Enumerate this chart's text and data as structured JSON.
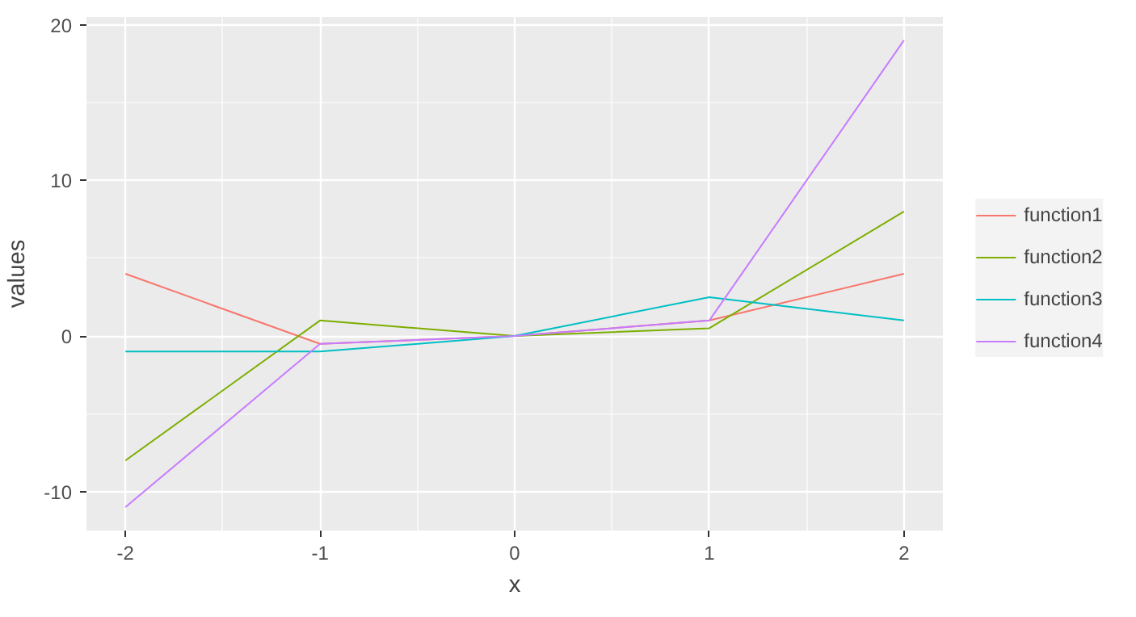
{
  "chart_data": {
    "type": "line",
    "xlabel": "x",
    "ylabel": "values",
    "x": [
      -2,
      -1,
      0,
      1,
      2
    ],
    "series": [
      {
        "name": "function1",
        "color": "#f8766d",
        "values": [
          4,
          -0.5,
          0,
          1,
          4
        ]
      },
      {
        "name": "function2",
        "color": "#7cae00",
        "values": [
          -8,
          1,
          0,
          0.5,
          8
        ]
      },
      {
        "name": "function3",
        "color": "#00bfc4",
        "values": [
          -1,
          -1,
          0,
          2.5,
          1
        ]
      },
      {
        "name": "function4",
        "color": "#c77cff",
        "values": [
          -11,
          -0.5,
          0,
          1,
          19
        ]
      }
    ],
    "xlim": [
      -2.2,
      2.2
    ],
    "ylim": [
      -12.5,
      20.5
    ],
    "xticks": [
      -2,
      {
        "value": -1.5,
        "label": null
      },
      -1,
      {
        "value": -0.5,
        "label": null
      },
      0,
      {
        "value": 0.5,
        "label": null
      },
      1,
      {
        "value": 1.5,
        "label": null
      },
      2
    ],
    "yticks": [
      -10,
      {
        "value": -5,
        "label": null
      },
      0,
      {
        "value": 5,
        "label": null
      },
      10,
      {
        "value": 15,
        "label": null
      },
      20
    ],
    "grid": true,
    "legend": "right",
    "marker": "none",
    "line_style": "solid"
  }
}
